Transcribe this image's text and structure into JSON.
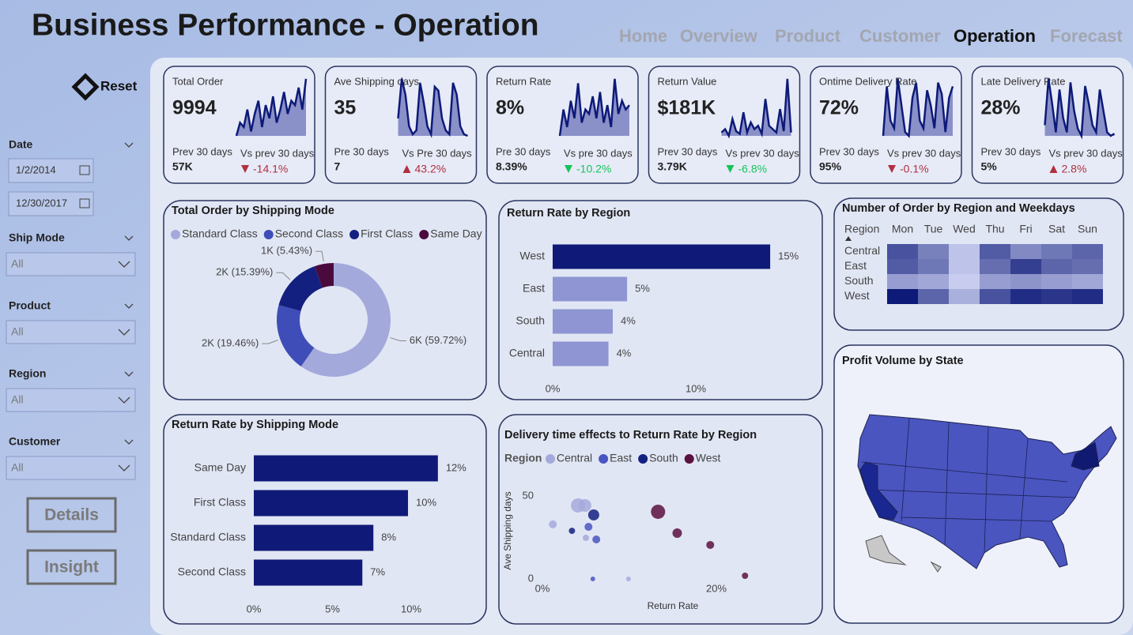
{
  "header": {
    "title": "Business Performance - Operation"
  },
  "nav": {
    "items": [
      "Home",
      "Overview",
      "Product",
      "Customer",
      "Operation",
      "Forecast"
    ],
    "active": 4
  },
  "sidebar": {
    "reset": "Reset",
    "filters": [
      {
        "label": "Date",
        "values": [
          "1/2/2014",
          "12/30/2017"
        ]
      },
      {
        "label": "Ship Mode",
        "values": [
          "All"
        ]
      },
      {
        "label": "Product",
        "values": [
          "All"
        ]
      },
      {
        "label": "Region",
        "values": [
          "All"
        ]
      },
      {
        "label": "Customer",
        "values": [
          "All"
        ]
      }
    ],
    "buttons": [
      "Details",
      "Insight"
    ]
  },
  "kpis": [
    {
      "title": "Total Order",
      "value": "9994",
      "prev_label": "Prev 30 days",
      "prev_value": "57K",
      "vs_label": "Vs prev 30 days",
      "vs_value": "-14.1%",
      "trend": "down",
      "trend_color": "#b03040",
      "sparkline": [
        30,
        45,
        40,
        60,
        35,
        55,
        70,
        40,
        65,
        50,
        75,
        45,
        60,
        80,
        55,
        70,
        65,
        85,
        60,
        95
      ]
    },
    {
      "title": "Ave Shipping days",
      "value": "35",
      "prev_label": "Pre 30 days",
      "prev_value": "7",
      "vs_label": "Vs Pre 30 days",
      "vs_value": "43.2%",
      "trend": "up",
      "trend_color": "#b03040",
      "sparkline": [
        40,
        90,
        70,
        30,
        20,
        25,
        85,
        60,
        30,
        20,
        80,
        75,
        40,
        25,
        20,
        85,
        70,
        30,
        20,
        18
      ]
    },
    {
      "title": "Return Rate",
      "value": "8%",
      "prev_label": "Pre 30 days",
      "prev_value": "8.39%",
      "vs_label": "Vs pre 30 days",
      "vs_value": "-10.2%",
      "trend": "down",
      "trend_color": "#16c45a",
      "sparkline": [
        30,
        60,
        40,
        70,
        50,
        90,
        45,
        60,
        55,
        75,
        50,
        80,
        45,
        65,
        40,
        95,
        55,
        70,
        60,
        65
      ]
    },
    {
      "title": "Return Value",
      "value": "$181K",
      "prev_label": "Prev 30 days",
      "prev_value": "3.79K",
      "vs_label": "Vs prev 30 days",
      "vs_value": "-6.8%",
      "trend": "down",
      "trend_color": "#16c45a",
      "sparkline": [
        10,
        15,
        5,
        30,
        12,
        8,
        40,
        10,
        25,
        15,
        20,
        8,
        60,
        20,
        15,
        10,
        45,
        12,
        90,
        10
      ]
    },
    {
      "title": "Ontime Delivery Rate",
      "value": "72%",
      "prev_label": "Prev 30 days",
      "prev_value": "95%",
      "vs_label": "Vs prev 30 days",
      "vs_value": "-0.1%",
      "trend": "down",
      "trend_color": "#b03040",
      "sparkline": [
        20,
        85,
        40,
        30,
        95,
        60,
        25,
        20,
        70,
        90,
        40,
        30,
        80,
        60,
        30,
        90,
        75,
        25,
        70,
        85
      ]
    },
    {
      "title": "Late Delivery Rate",
      "value": "28%",
      "prev_label": "Prev 30 days",
      "prev_value": "5%",
      "vs_label": "Vs prev 30 days",
      "vs_value": "2.8%",
      "trend": "up",
      "trend_color": "#b03040",
      "sparkline": [
        30,
        95,
        60,
        20,
        80,
        40,
        20,
        90,
        50,
        25,
        15,
        85,
        60,
        30,
        20,
        80,
        50,
        20,
        15,
        18
      ]
    }
  ],
  "chart_data": [
    {
      "type": "pie",
      "title": "Total Order by Shipping Mode",
      "categories": [
        "Standard Class",
        "Second Class",
        "First Class",
        "Same Day"
      ],
      "values": [
        59.72,
        19.46,
        15.39,
        5.43
      ],
      "value_labels": [
        "6K (59.72%)",
        "2K (19.46%)",
        "2K (15.39%)",
        "1K (5.43%)"
      ],
      "colors": [
        "#a4a9dc",
        "#3f4db8",
        "#142080",
        "#4a0a3c"
      ]
    },
    {
      "type": "bar",
      "orientation": "horizontal",
      "title": "Return Rate by Region",
      "categories": [
        "West",
        "East",
        "South",
        "Central"
      ],
      "values": [
        15.2,
        5.2,
        4.2,
        3.9
      ],
      "value_labels": [
        "15%",
        "5%",
        "4%",
        "4%"
      ],
      "colors": [
        "#0f1a78",
        "#8e95d2",
        "#8e95d2",
        "#8e95d2"
      ],
      "xlim": [
        0,
        16
      ],
      "xticks": [
        {
          "value": 0,
          "label": "0%"
        },
        {
          "value": 10,
          "label": "10%"
        }
      ]
    },
    {
      "type": "heatmap",
      "title": "Number of Order by Region and Weekdays",
      "row_header": "Region",
      "x": [
        "Mon",
        "Tue",
        "Wed",
        "Thu",
        "Fri",
        "Sat",
        "Sun"
      ],
      "y": [
        "Central",
        "East",
        "South",
        "West"
      ],
      "values": [
        [
          420,
          370,
          300,
          410,
          360,
          380,
          400
        ],
        [
          410,
          380,
          300,
          390,
          440,
          400,
          390
        ],
        [
          340,
          330,
          290,
          340,
          350,
          340,
          330
        ],
        [
          480,
          400,
          320,
          420,
          460,
          450,
          460
        ]
      ],
      "colors": [
        "#c8ccef",
        "#0d1a78"
      ]
    },
    {
      "type": "bar",
      "orientation": "horizontal",
      "title": "Return Rate by Shipping Mode",
      "categories": [
        "Same Day",
        "First Class",
        "Standard Class",
        "Second Class"
      ],
      "values": [
        11.7,
        9.8,
        7.6,
        6.9
      ],
      "value_labels": [
        "12%",
        "10%",
        "8%",
        "7%"
      ],
      "colors": [
        "#0f1a78",
        "#0f1a78",
        "#0f1a78",
        "#0f1a78"
      ],
      "xlim": [
        0,
        12.5
      ],
      "xticks": [
        {
          "value": 0,
          "label": "0%"
        },
        {
          "value": 5,
          "label": "5%"
        },
        {
          "value": 10,
          "label": "10%"
        }
      ]
    },
    {
      "type": "scatter",
      "title": "Delivery time effects to Return Rate by Region",
      "legend_title": "Region",
      "xlabel": "Return Rate",
      "ylabel": "Ave Shipping days",
      "xlim": [
        0,
        25
      ],
      "ylim": [
        0,
        55
      ],
      "xticks": [
        {
          "value": 0,
          "label": "0%"
        },
        {
          "value": 20,
          "label": "20%"
        }
      ],
      "yticks": [
        0,
        50
      ],
      "series": [
        {
          "name": "Central",
          "color": "#a4a9dc",
          "x": [
            4.1,
            4.9,
            1.2,
            5.0,
            9.9
          ],
          "values": [
            44.3,
            44.3,
            32.9,
            24.8,
            0
          ],
          "sizes": [
            9,
            8,
            5,
            4,
            3
          ]
        },
        {
          "name": "East",
          "color": "#4a55c0",
          "x": [
            5.3,
            6.2,
            5.8
          ],
          "values": [
            31.4,
            23.8,
            0
          ],
          "sizes": [
            5,
            5,
            3
          ]
        },
        {
          "name": "South",
          "color": "#142080",
          "x": [
            5.9,
            3.4
          ],
          "values": [
            38.6,
            29
          ],
          "sizes": [
            7,
            4
          ]
        },
        {
          "name": "West",
          "color": "#5a1040",
          "x": [
            13.3,
            15.5,
            19.3,
            23.3
          ],
          "values": [
            40.5,
            27.6,
            20.5,
            1.9
          ],
          "sizes": [
            9,
            6,
            5,
            4
          ]
        }
      ]
    },
    {
      "type": "map",
      "title": "Profit Volume by State"
    }
  ]
}
